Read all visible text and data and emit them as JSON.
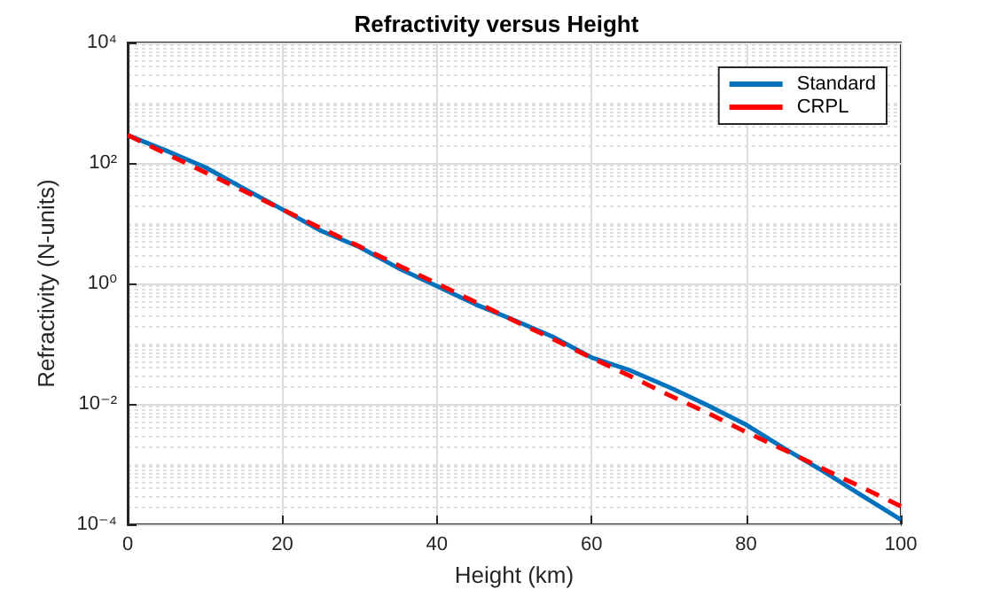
{
  "chart_data": {
    "type": "line",
    "title": "Refractivity versus Height",
    "xlabel": "Height (km)",
    "ylabel": "Refractivity (N-units)",
    "x": [
      0,
      5,
      10,
      15,
      20,
      25,
      30,
      35,
      40,
      45,
      50,
      55,
      60,
      65,
      70,
      75,
      80,
      85,
      90,
      95,
      100
    ],
    "series": [
      {
        "name": "Standard",
        "color": "#0072bd",
        "line_style": "solid",
        "values": [
          290,
          160,
          85,
          38,
          17,
          7.5,
          4,
          1.8,
          0.9,
          0.45,
          0.245,
          0.13,
          0.059,
          0.036,
          0.019,
          0.0095,
          0.0045,
          0.0018,
          0.00076,
          0.0003,
          0.00012
        ]
      },
      {
        "name": "CRPL",
        "color": "#ff0000",
        "line_style": "dashed",
        "values": [
          290,
          142,
          70,
          34.5,
          17,
          8.3,
          4.1,
          2.0,
          1.0,
          0.49,
          0.24,
          0.12,
          0.058,
          0.029,
          0.014,
          0.0071,
          0.0034,
          0.0017,
          0.00083,
          0.00041,
          0.0002
        ]
      }
    ],
    "xlim": [
      0,
      100
    ],
    "xticks": [
      0,
      20,
      40,
      60,
      80,
      100
    ],
    "ylim": [
      0.0001,
      10000
    ],
    "yticks": [
      {
        "value": 0.0001,
        "label": "10⁻⁴"
      },
      {
        "value": 0.01,
        "label": "10⁻²"
      },
      {
        "value": 1,
        "label": "10⁰"
      },
      {
        "value": 100,
        "label": "10²"
      },
      {
        "value": 10000,
        "label": "10⁴"
      }
    ],
    "log": true,
    "grid": true,
    "legend": "top right",
    "marker": "none"
  }
}
